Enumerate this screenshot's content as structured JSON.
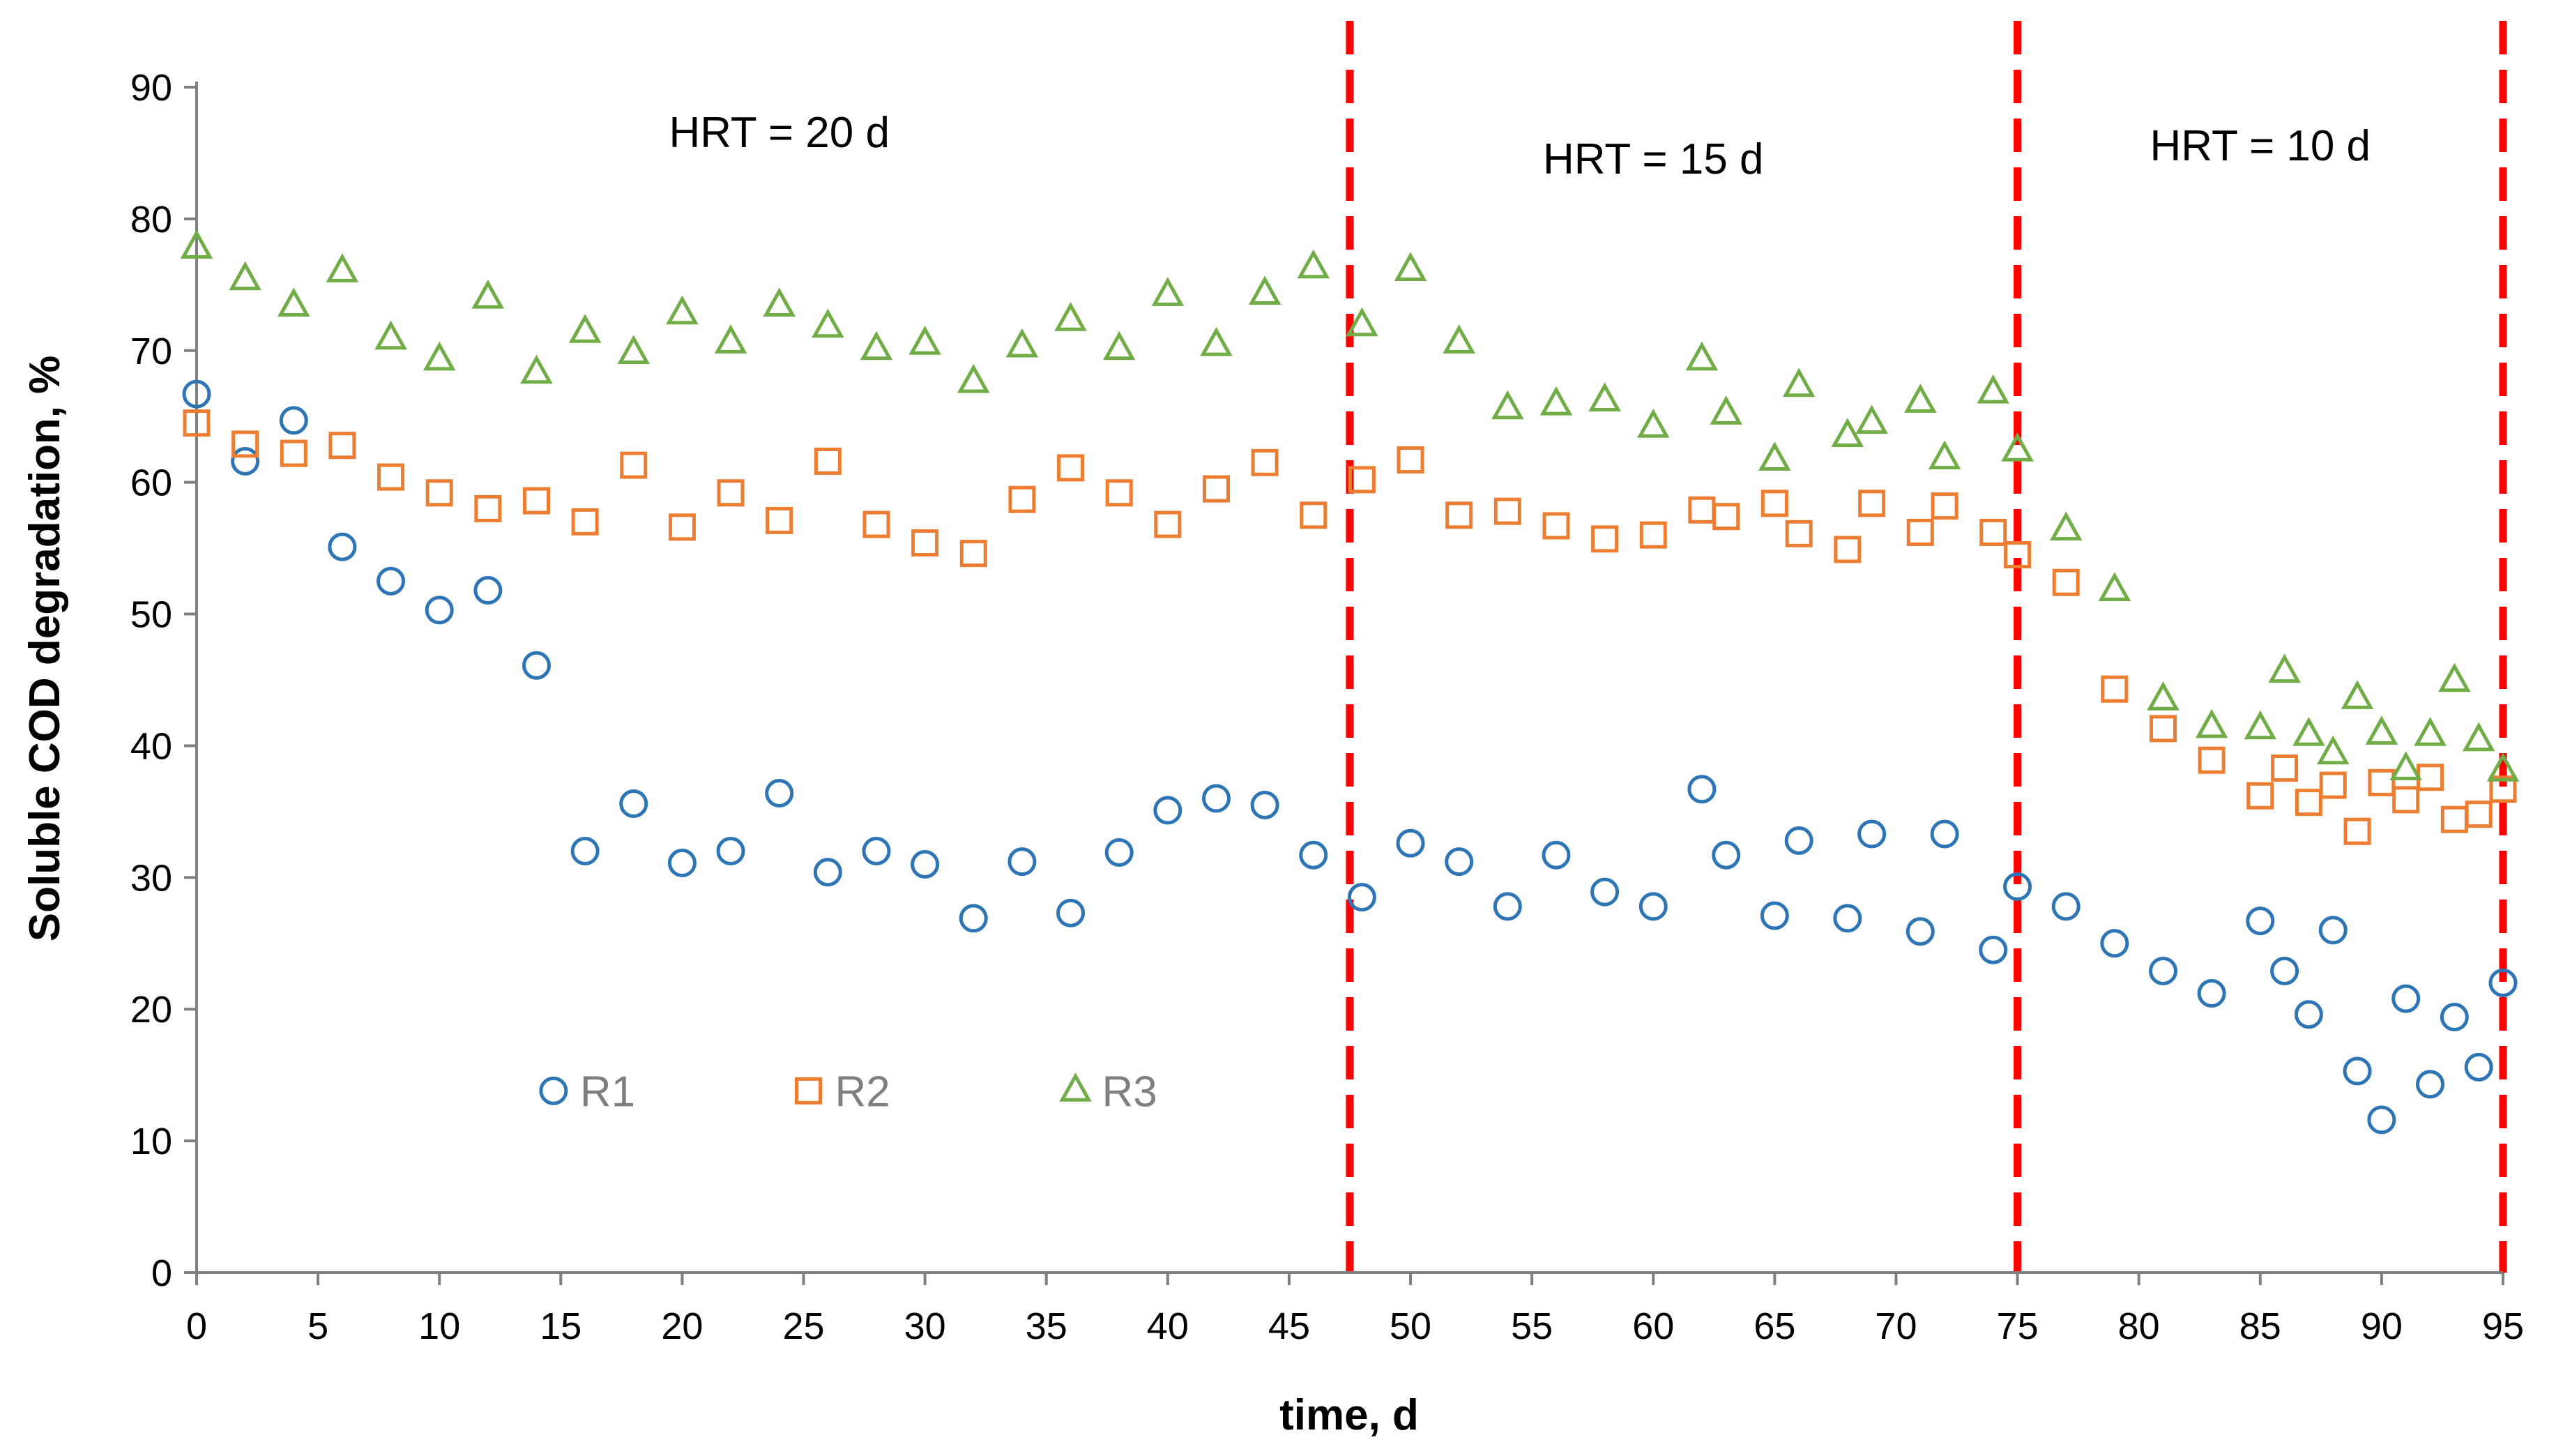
{
  "chart_data": {
    "type": "scatter",
    "xlabel": "time, d",
    "ylabel": "Soluble COD degradation, %",
    "xlim": [
      0,
      95
    ],
    "ylim": [
      0,
      90
    ],
    "x_ticks": [
      0,
      5,
      10,
      15,
      20,
      25,
      30,
      35,
      40,
      45,
      50,
      55,
      60,
      65,
      70,
      75,
      80,
      85,
      90,
      95
    ],
    "y_ticks": [
      0,
      10,
      20,
      30,
      40,
      50,
      60,
      70,
      80,
      90
    ],
    "grid": false,
    "legend_position": "bottom-left",
    "vlines": [
      {
        "x": 47.5,
        "color": "#ff0000",
        "style": "dashed"
      },
      {
        "x": 75,
        "color": "#ff0000",
        "style": "dashed"
      },
      {
        "x": 95,
        "color": "#ff0000",
        "style": "dashed"
      }
    ],
    "annotations": [
      {
        "text": "HRT = 20 d",
        "x": 24,
        "y": 86.5
      },
      {
        "text": "HRT = 15 d",
        "x": 60,
        "y": 84.5
      },
      {
        "text": "HRT = 10 d",
        "x": 85,
        "y": 85.5
      }
    ],
    "series": [
      {
        "name": "R1",
        "marker": "circle",
        "color": "#2e75b6",
        "points": [
          [
            0,
            66.7
          ],
          [
            2,
            61.6
          ],
          [
            4,
            64.7
          ],
          [
            6,
            55.1
          ],
          [
            8,
            52.5
          ],
          [
            10,
            50.3
          ],
          [
            12,
            51.8
          ],
          [
            14,
            46.1
          ],
          [
            16,
            32.0
          ],
          [
            18,
            35.6
          ],
          [
            20,
            31.1
          ],
          [
            22,
            32.0
          ],
          [
            24,
            36.4
          ],
          [
            26,
            30.4
          ],
          [
            28,
            32.0
          ],
          [
            30,
            31.0
          ],
          [
            32,
            26.9
          ],
          [
            34,
            31.2
          ],
          [
            36,
            27.3
          ],
          [
            38,
            31.9
          ],
          [
            40,
            35.1
          ],
          [
            42,
            36.0
          ],
          [
            44,
            35.5
          ],
          [
            46,
            31.7
          ],
          [
            48,
            28.5
          ],
          [
            50,
            32.6
          ],
          [
            52,
            31.2
          ],
          [
            54,
            27.8
          ],
          [
            56,
            31.7
          ],
          [
            58,
            28.9
          ],
          [
            60,
            27.8
          ],
          [
            62,
            36.7
          ],
          [
            63,
            31.7
          ],
          [
            65,
            27.1
          ],
          [
            66,
            32.8
          ],
          [
            68,
            26.9
          ],
          [
            69,
            33.3
          ],
          [
            71,
            25.9
          ],
          [
            72,
            33.3
          ],
          [
            74,
            24.5
          ],
          [
            75,
            29.3
          ],
          [
            77,
            27.8
          ],
          [
            79,
            25.0
          ],
          [
            81,
            22.9
          ],
          [
            83,
            21.2
          ],
          [
            85,
            26.7
          ],
          [
            86,
            22.9
          ],
          [
            87,
            19.6
          ],
          [
            88,
            26.0
          ],
          [
            89,
            15.3
          ],
          [
            90,
            11.6
          ],
          [
            91,
            20.8
          ],
          [
            92,
            14.3
          ],
          [
            93,
            19.4
          ],
          [
            94,
            15.6
          ],
          [
            95,
            22.0
          ]
        ]
      },
      {
        "name": "R2",
        "marker": "square",
        "color": "#ed7d31",
        "points": [
          [
            0,
            64.5
          ],
          [
            2,
            62.9
          ],
          [
            4,
            62.2
          ],
          [
            6,
            62.8
          ],
          [
            8,
            60.4
          ],
          [
            10,
            59.2
          ],
          [
            12,
            58.0
          ],
          [
            14,
            58.6
          ],
          [
            16,
            57.0
          ],
          [
            18,
            61.3
          ],
          [
            20,
            56.6
          ],
          [
            22,
            59.2
          ],
          [
            24,
            57.1
          ],
          [
            26,
            61.6
          ],
          [
            28,
            56.8
          ],
          [
            30,
            55.4
          ],
          [
            32,
            54.6
          ],
          [
            34,
            58.7
          ],
          [
            36,
            61.1
          ],
          [
            38,
            59.2
          ],
          [
            40,
            56.8
          ],
          [
            42,
            59.5
          ],
          [
            44,
            61.5
          ],
          [
            46,
            57.5
          ],
          [
            48,
            60.2
          ],
          [
            50,
            61.7
          ],
          [
            52,
            57.5
          ],
          [
            54,
            57.8
          ],
          [
            56,
            56.7
          ],
          [
            58,
            55.7
          ],
          [
            60,
            56.0
          ],
          [
            62,
            57.9
          ],
          [
            63,
            57.4
          ],
          [
            65,
            58.4
          ],
          [
            66,
            56.1
          ],
          [
            68,
            54.9
          ],
          [
            69,
            58.4
          ],
          [
            71,
            56.2
          ],
          [
            72,
            58.2
          ],
          [
            74,
            56.2
          ],
          [
            75,
            54.5
          ],
          [
            77,
            52.4
          ],
          [
            79,
            44.3
          ],
          [
            81,
            41.3
          ],
          [
            83,
            38.9
          ],
          [
            85,
            36.2
          ],
          [
            86,
            38.3
          ],
          [
            87,
            35.7
          ],
          [
            88,
            37.0
          ],
          [
            89,
            33.5
          ],
          [
            90,
            37.2
          ],
          [
            91,
            35.9
          ],
          [
            92,
            37.6
          ],
          [
            93,
            34.4
          ],
          [
            94,
            34.8
          ],
          [
            95,
            36.7
          ]
        ]
      },
      {
        "name": "R3",
        "marker": "triangle",
        "color": "#70ad47",
        "points": [
          [
            0,
            77.8
          ],
          [
            2,
            75.4
          ],
          [
            4,
            73.4
          ],
          [
            6,
            76.0
          ],
          [
            8,
            70.9
          ],
          [
            10,
            69.3
          ],
          [
            12,
            74.0
          ],
          [
            14,
            68.3
          ],
          [
            16,
            71.4
          ],
          [
            18,
            69.8
          ],
          [
            20,
            72.8
          ],
          [
            22,
            70.6
          ],
          [
            24,
            73.4
          ],
          [
            26,
            71.8
          ],
          [
            28,
            70.1
          ],
          [
            30,
            70.5
          ],
          [
            32,
            67.6
          ],
          [
            34,
            70.3
          ],
          [
            36,
            72.3
          ],
          [
            38,
            70.1
          ],
          [
            40,
            74.2
          ],
          [
            42,
            70.4
          ],
          [
            44,
            74.3
          ],
          [
            46,
            76.3
          ],
          [
            48,
            71.9
          ],
          [
            50,
            76.1
          ],
          [
            52,
            70.6
          ],
          [
            54,
            65.6
          ],
          [
            56,
            65.9
          ],
          [
            58,
            66.2
          ],
          [
            60,
            64.2
          ],
          [
            62,
            69.3
          ],
          [
            63,
            65.2
          ],
          [
            65,
            61.7
          ],
          [
            66,
            67.3
          ],
          [
            68,
            63.5
          ],
          [
            69,
            64.5
          ],
          [
            71,
            66.1
          ],
          [
            72,
            61.8
          ],
          [
            74,
            66.8
          ],
          [
            75,
            62.4
          ],
          [
            77,
            56.4
          ],
          [
            79,
            51.8
          ],
          [
            81,
            43.5
          ],
          [
            83,
            41.4
          ],
          [
            85,
            41.3
          ],
          [
            86,
            45.6
          ],
          [
            87,
            40.8
          ],
          [
            88,
            39.4
          ],
          [
            89,
            43.6
          ],
          [
            90,
            40.9
          ],
          [
            91,
            38.2
          ],
          [
            92,
            40.8
          ],
          [
            93,
            44.9
          ],
          [
            94,
            40.4
          ],
          [
            95,
            38.1
          ]
        ]
      }
    ]
  }
}
